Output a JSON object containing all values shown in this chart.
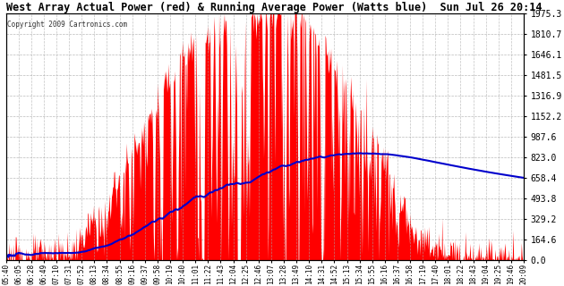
{
  "title": "West Array Actual Power (red) & Running Average Power (Watts blue)  Sun Jul 26 20:14",
  "copyright": "Copyright 2009 Cartronics.com",
  "ylabel_right_values": [
    1975.3,
    1810.7,
    1646.1,
    1481.5,
    1316.9,
    1152.2,
    987.6,
    823.0,
    658.4,
    493.8,
    329.2,
    164.6,
    0.0
  ],
  "ymax": 1975.3,
  "ymin": 0.0,
  "background_color": "#ffffff",
  "plot_bg_color": "#ffffff",
  "grid_color": "#aaaaaa",
  "bar_color": "#ff0000",
  "avg_line_color": "#0000cc",
  "tick_label_color": "#000000",
  "x_labels": [
    "05:40",
    "06:05",
    "06:28",
    "06:49",
    "07:10",
    "07:31",
    "07:52",
    "08:13",
    "08:34",
    "08:55",
    "09:16",
    "09:37",
    "09:58",
    "10:19",
    "10:40",
    "11:01",
    "11:22",
    "11:43",
    "12:04",
    "12:25",
    "12:46",
    "13:07",
    "13:28",
    "13:49",
    "14:10",
    "14:31",
    "14:52",
    "15:13",
    "15:34",
    "15:55",
    "16:16",
    "16:37",
    "16:58",
    "17:19",
    "17:40",
    "18:01",
    "18:22",
    "18:43",
    "19:04",
    "19:25",
    "19:46",
    "20:09"
  ]
}
